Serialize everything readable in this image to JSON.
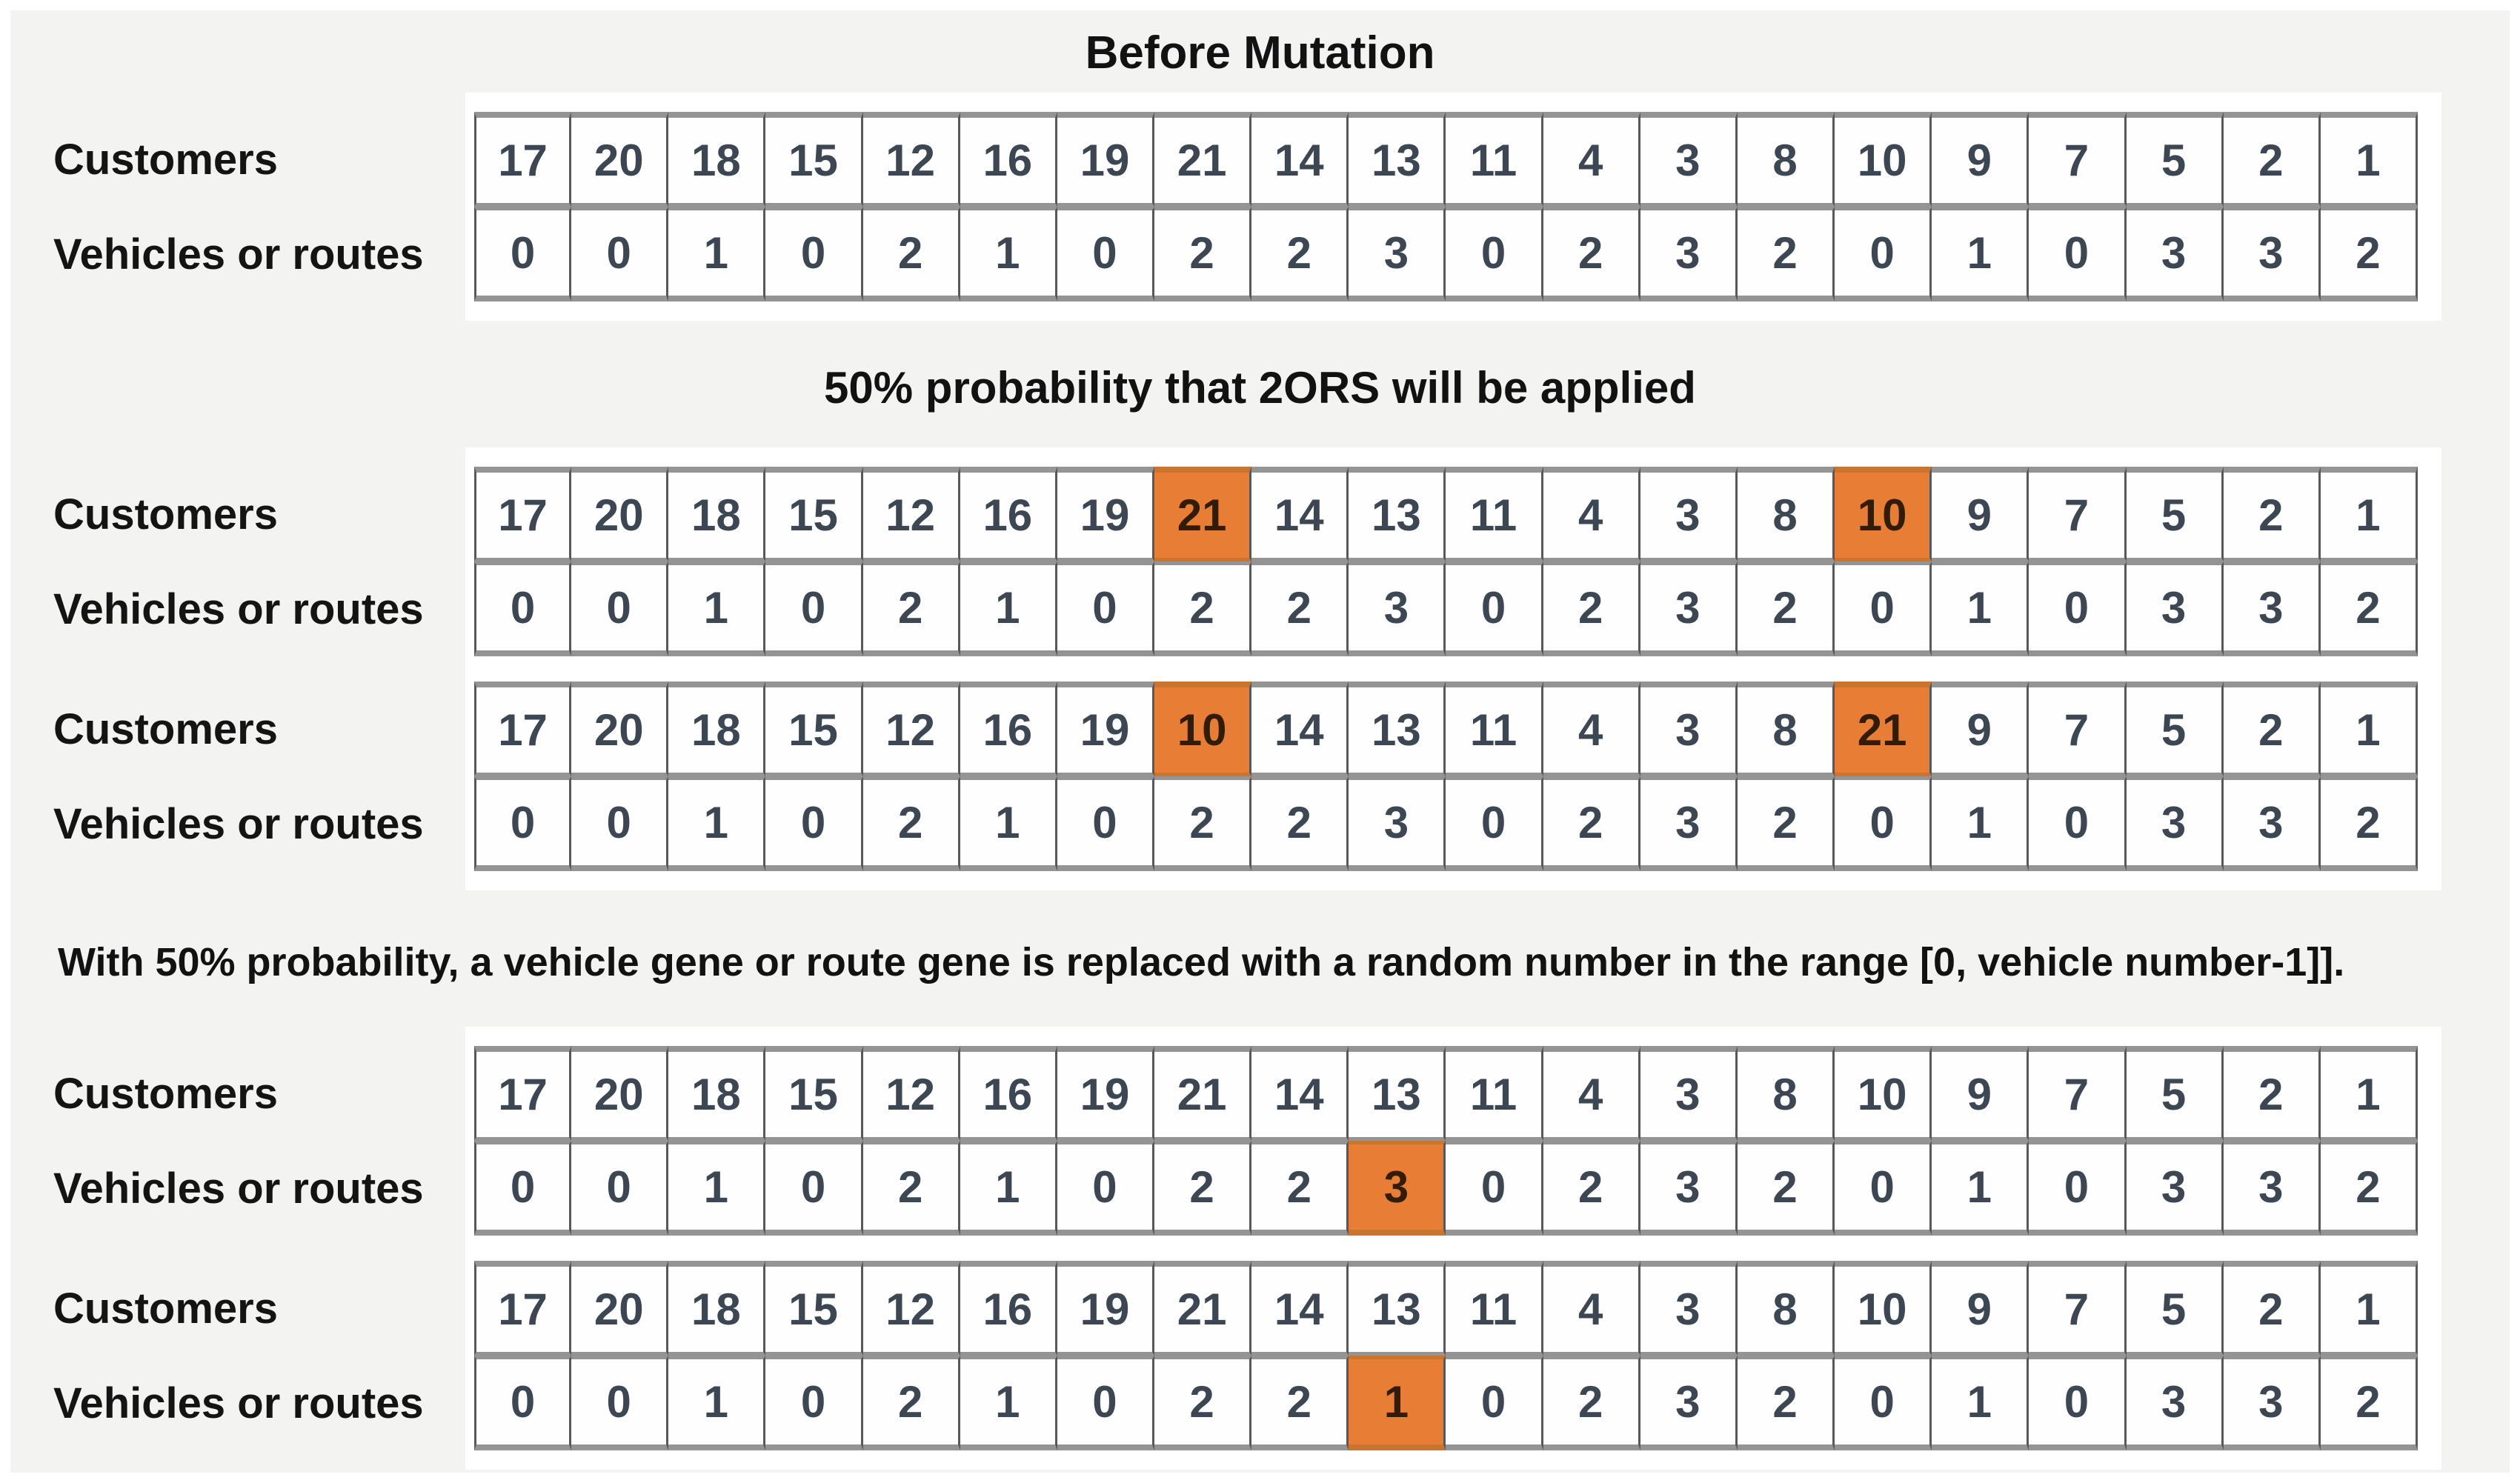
{
  "figure": {
    "kind": "genetic-algorithm-mutation-diagram",
    "highlight_color": "#e87e35",
    "page_background": "#f3f3f1",
    "panel_background": "#ffffff"
  },
  "titles": {
    "before": "Before Mutation",
    "swap": "50% probability that 2ORS will be applied",
    "replace_note": "With 50% probability, a vehicle gene or route gene is replaced with a random number in the range [0, vehicle number-1]]."
  },
  "row_labels": {
    "customers": "Customers",
    "vehicles": "Vehicles or routes"
  },
  "tables": [
    {
      "id": "before-mutation",
      "customers": [
        17,
        20,
        18,
        15,
        12,
        16,
        19,
        21,
        14,
        13,
        11,
        4,
        3,
        8,
        10,
        9,
        7,
        5,
        2,
        1
      ],
      "vehicles": [
        0,
        0,
        1,
        0,
        2,
        1,
        0,
        2,
        2,
        3,
        0,
        2,
        3,
        2,
        0,
        1,
        0,
        3,
        3,
        2
      ],
      "customer_highlights": [],
      "vehicle_highlights": []
    },
    {
      "id": "swap-genes-selected",
      "customers": [
        17,
        20,
        18,
        15,
        12,
        16,
        19,
        21,
        14,
        13,
        11,
        4,
        3,
        8,
        10,
        9,
        7,
        5,
        2,
        1
      ],
      "vehicles": [
        0,
        0,
        1,
        0,
        2,
        1,
        0,
        2,
        2,
        3,
        0,
        2,
        3,
        2,
        0,
        1,
        0,
        3,
        3,
        2
      ],
      "customer_highlights": [
        7,
        14
      ],
      "vehicle_highlights": []
    },
    {
      "id": "swap-genes-result",
      "customers": [
        17,
        20,
        18,
        15,
        12,
        16,
        19,
        10,
        14,
        13,
        11,
        4,
        3,
        8,
        21,
        9,
        7,
        5,
        2,
        1
      ],
      "vehicles": [
        0,
        0,
        1,
        0,
        2,
        1,
        0,
        2,
        2,
        3,
        0,
        2,
        3,
        2,
        0,
        1,
        0,
        3,
        3,
        2
      ],
      "customer_highlights": [
        7,
        14
      ],
      "vehicle_highlights": []
    },
    {
      "id": "replace-gene-selected",
      "customers": [
        17,
        20,
        18,
        15,
        12,
        16,
        19,
        21,
        14,
        13,
        11,
        4,
        3,
        8,
        10,
        9,
        7,
        5,
        2,
        1
      ],
      "vehicles": [
        0,
        0,
        1,
        0,
        2,
        1,
        0,
        2,
        2,
        3,
        0,
        2,
        3,
        2,
        0,
        1,
        0,
        3,
        3,
        2
      ],
      "customer_highlights": [],
      "vehicle_highlights": [
        9
      ]
    },
    {
      "id": "replace-gene-result",
      "customers": [
        17,
        20,
        18,
        15,
        12,
        16,
        19,
        21,
        14,
        13,
        11,
        4,
        3,
        8,
        10,
        9,
        7,
        5,
        2,
        1
      ],
      "vehicles": [
        0,
        0,
        1,
        0,
        2,
        1,
        0,
        2,
        2,
        1,
        0,
        2,
        3,
        2,
        0,
        1,
        0,
        3,
        3,
        2
      ],
      "customer_highlights": [],
      "vehicle_highlights": [
        9
      ]
    }
  ]
}
